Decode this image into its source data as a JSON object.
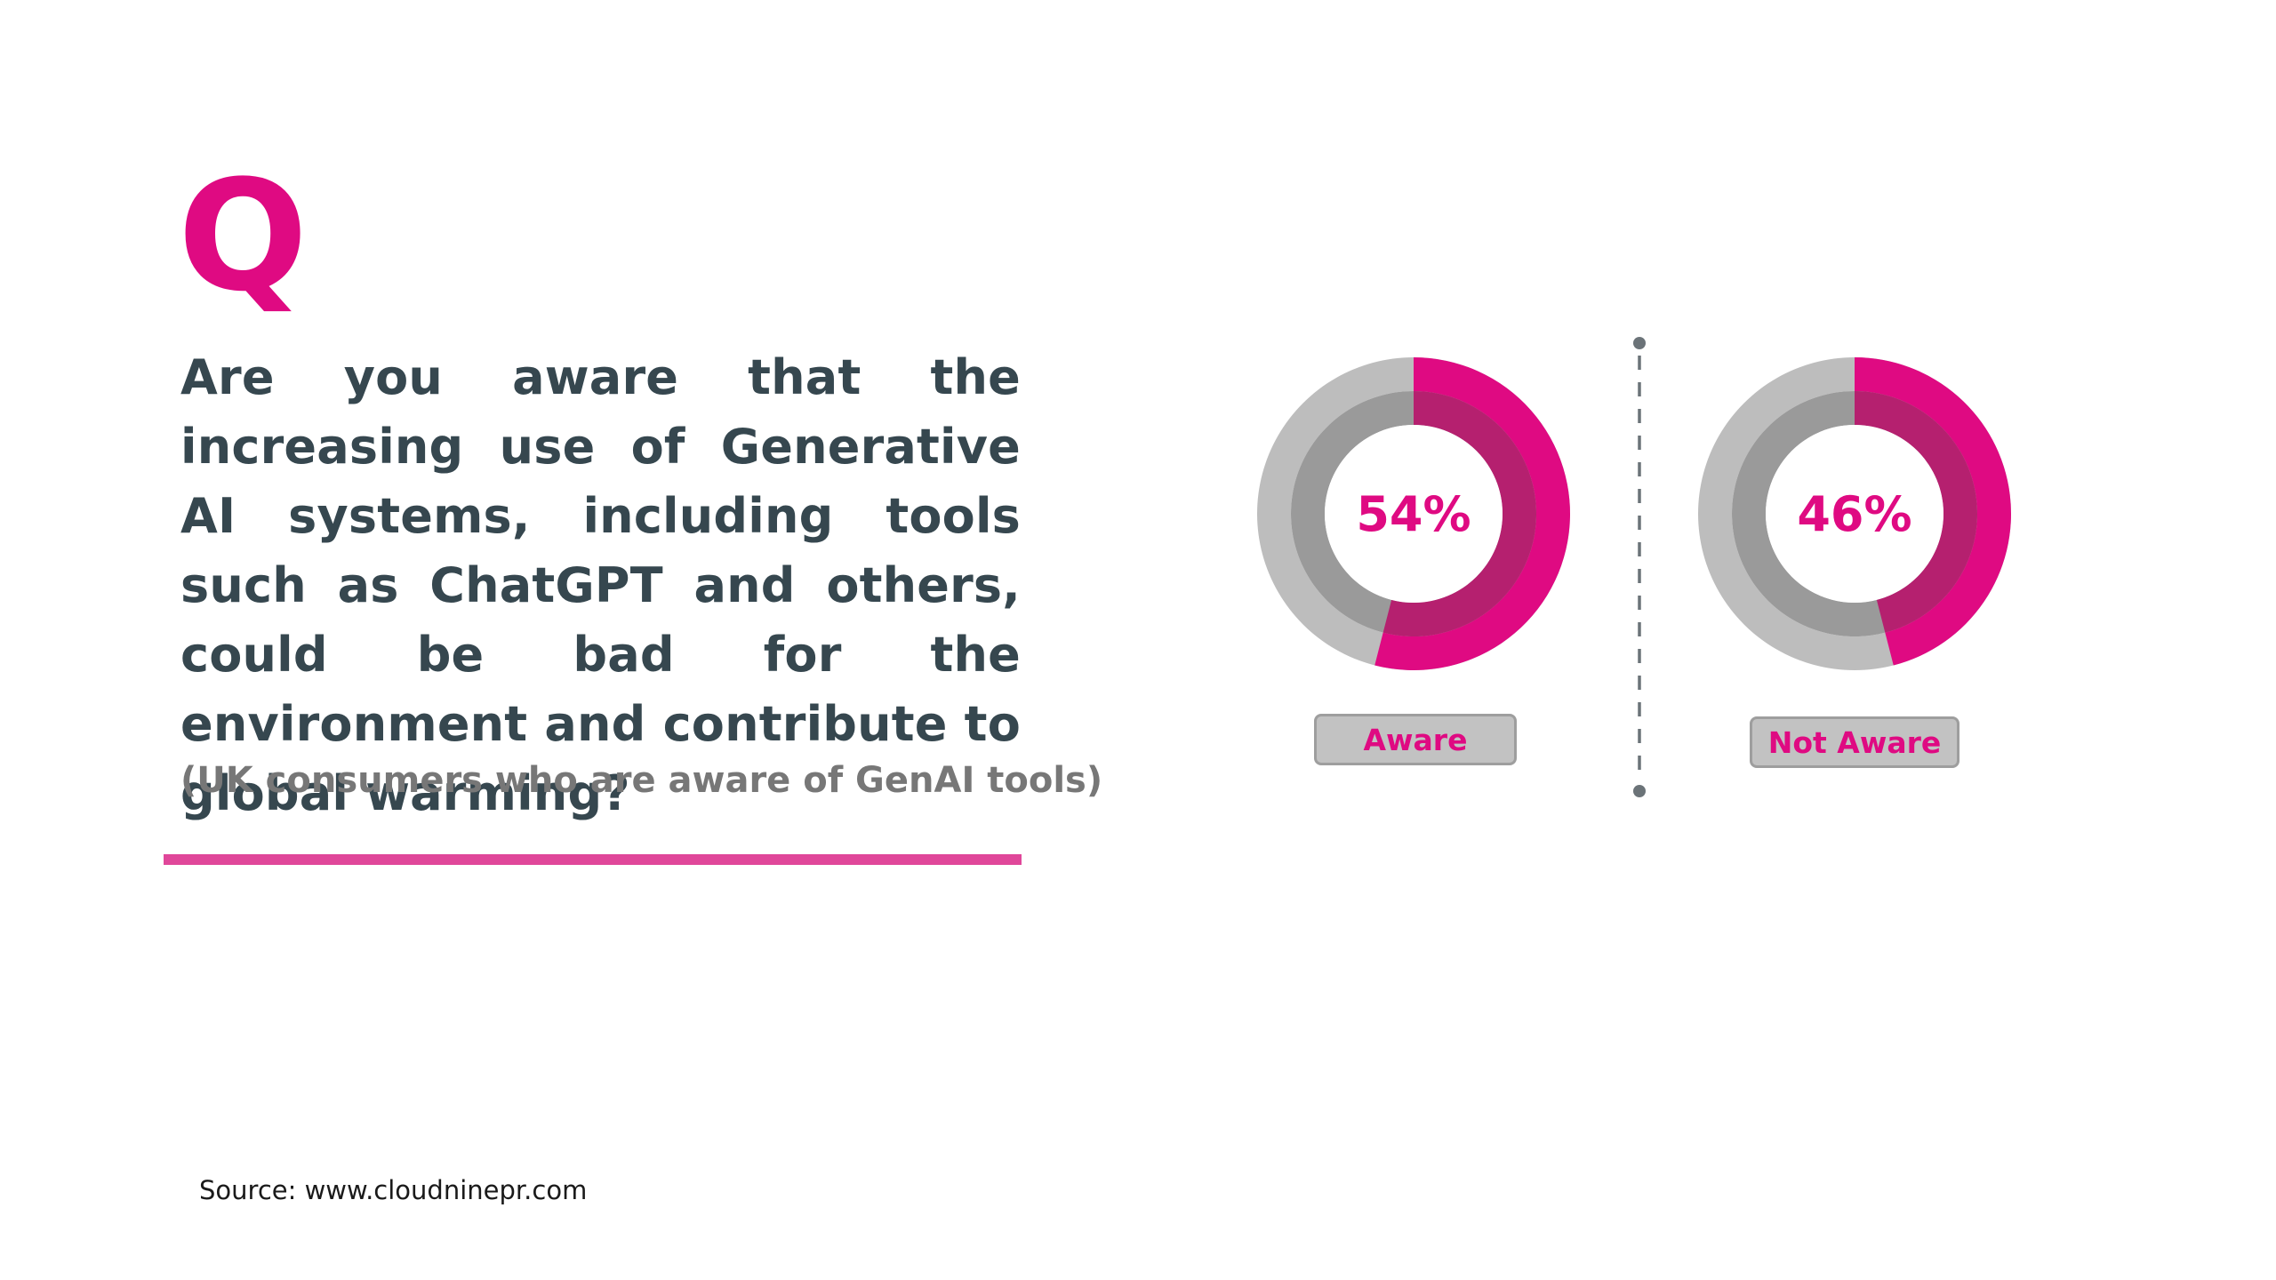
{
  "slide": {
    "q_letter": "Q",
    "question": "Are you aware that the increasing use of Generative AI systems, including tools such as ChatGPT and others, could be bad for the environment and contribute to global warming?",
    "subtitle": "(UK consumers who are aware of GenAI tools)",
    "source": "Source: www.cloudninepr.com"
  },
  "colors": {
    "accent": "#df0a82",
    "ring_light": "#bdbdbd",
    "ring_dark": "#9a9a9a",
    "ring_accent_inner": "#b5206f",
    "text_dark": "#36474f",
    "text_muted": "#777777"
  },
  "chart_data": [
    {
      "type": "pie",
      "title": "",
      "categories": [
        "Aware"
      ],
      "values": [
        54
      ],
      "value_label": "54%",
      "label": "Aware"
    },
    {
      "type": "pie",
      "title": "",
      "categories": [
        "Not Aware"
      ],
      "values": [
        46
      ],
      "value_label": "46%",
      "label": "Not Aware"
    }
  ]
}
